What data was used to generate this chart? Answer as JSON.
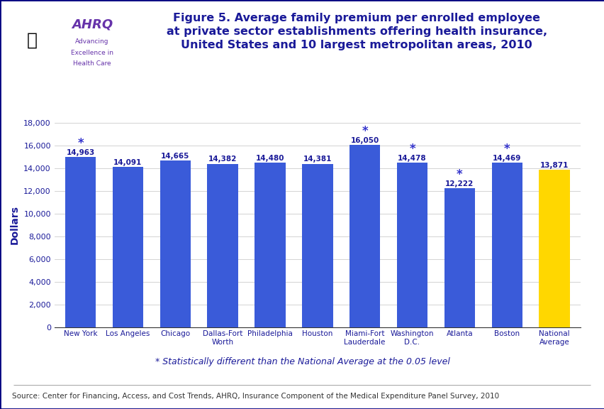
{
  "categories": [
    "New York",
    "Los Angeles",
    "Chicago",
    "Dallas-Fort\nWorth",
    "Philadelphia",
    "Houston",
    "Miami-Fort\nLauderdale",
    "Washington\nD.C.",
    "Atlanta",
    "Boston",
    "National\nAverage"
  ],
  "values": [
    14963,
    14091,
    14665,
    14382,
    14480,
    14381,
    16050,
    14478,
    12222,
    14469,
    13871
  ],
  "bar_colors": [
    "#3a5bd9",
    "#3a5bd9",
    "#3a5bd9",
    "#3a5bd9",
    "#3a5bd9",
    "#3a5bd9",
    "#3a5bd9",
    "#3a5bd9",
    "#3a5bd9",
    "#3a5bd9",
    "#FFD700"
  ],
  "star_flags": [
    true,
    false,
    false,
    false,
    false,
    false,
    true,
    true,
    true,
    true,
    false
  ],
  "title_line1": "Figure 5. Average family premium per enrolled employee",
  "title_line2": "at private sector establishments offering health insurance,",
  "title_line3": "United States and 10 largest metropolitan areas, 2010",
  "ylabel": "Dollars",
  "ylim": [
    0,
    18000
  ],
  "yticks": [
    0,
    2000,
    4000,
    6000,
    8000,
    10000,
    12000,
    14000,
    16000,
    18000
  ],
  "footnote": "* Statistically different than the National Average at the 0.05 level",
  "source": "Source: Center for Financing, Access, and Cost Trends, AHRQ, Insurance Component of the Medical Expenditure Panel Survey, 2010",
  "title_color": "#1a1a99",
  "label_color": "#1a1a99",
  "star_color": "#3333cc",
  "header_bg": "#ddeeff",
  "divider_color": "#000080",
  "background_color": "#ffffff",
  "outer_border_color": "#000080",
  "footnote_color": "#1a1a99",
  "source_color": "#333333",
  "ylabel_color": "#1a1a99",
  "ytick_color": "#1a1a99",
  "xtick_color": "#1a1a99",
  "axis_color": "#333333"
}
